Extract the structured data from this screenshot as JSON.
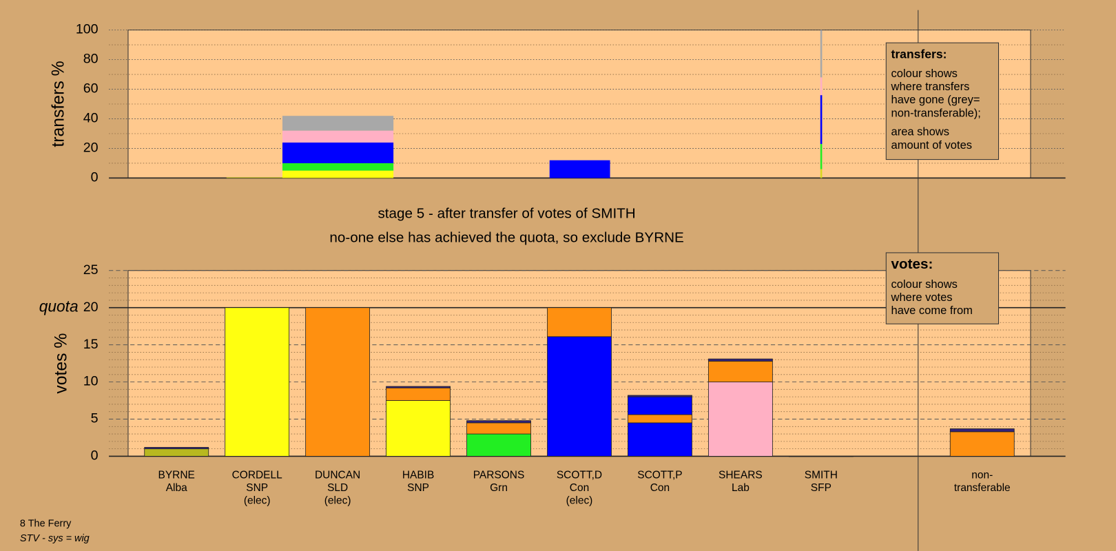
{
  "chart_data": [
    {
      "type": "transfer-area",
      "ylabel": "transfers %",
      "ylim": [
        0,
        100
      ],
      "yticks": [
        0,
        20,
        40,
        60,
        80,
        100
      ],
      "minor_grid_step": 10,
      "grid_style": "dotted",
      "xlim": [
        0,
        100
      ],
      "blocks": [
        {
          "x": [
            10.9,
            17.1
          ],
          "segments": [
            {
              "color": "#b8b820",
              "value": 0.5
            }
          ]
        },
        {
          "x": [
            17.1,
            29.4
          ],
          "segments": [
            {
              "color": "#ffff10",
              "value": 5
            },
            {
              "color": "#22ee22",
              "value": 5
            },
            {
              "color": "#0000ff",
              "value": 14
            },
            {
              "color": "#ffb0c4",
              "value": 8
            },
            {
              "color": "#a8a8a8",
              "value": 10
            }
          ]
        },
        {
          "x": [
            46.7,
            53.4
          ],
          "segments": [
            {
              "color": "#0000ff",
              "value": 12
            }
          ]
        },
        {
          "x": [
            76.7,
            76.9
          ],
          "segments": [
            {
              "color": "#d8d820",
              "value": 6
            },
            {
              "color": "#22ee22",
              "value": 17
            },
            {
              "color": "#0000ff",
              "value": 33
            },
            {
              "color": "#ffb0c4",
              "value": 12
            },
            {
              "color": "#a8a8a8",
              "value": 32
            }
          ]
        }
      ],
      "legend": {
        "title": "transfers:",
        "paragraphs": [
          [
            "colour shows",
            "where transfers",
            "have gone (grey=",
            "non-transferable);"
          ],
          [
            "area shows",
            "amount of votes"
          ]
        ]
      }
    },
    {
      "type": "stacked-bar",
      "ylabel": "votes %",
      "ylim": [
        0,
        25
      ],
      "yticks": [
        0,
        5,
        10,
        15,
        20,
        25
      ],
      "minor_grid_step": 1,
      "grid_style": "dashed",
      "quota": {
        "value": 20,
        "label": "quota"
      },
      "bars": [
        {
          "label": [
            "BYRNE",
            "Alba"
          ],
          "segments": [
            {
              "color": "#b8b820",
              "value": 1.0
            },
            {
              "color": "#33237a",
              "value": 0.2
            }
          ]
        },
        {
          "label": [
            "CORDELL",
            "SNP",
            "(elec)"
          ],
          "segments": [
            {
              "color": "#ffff10",
              "value": 20
            }
          ]
        },
        {
          "label": [
            "DUNCAN",
            "SLD",
            "(elec)"
          ],
          "segments": [
            {
              "color": "#ff9010",
              "value": 20
            }
          ]
        },
        {
          "label": [
            "HABIB",
            "SNP"
          ],
          "segments": [
            {
              "color": "#ffff10",
              "value": 7.5
            },
            {
              "color": "#ff9010",
              "value": 1.7
            },
            {
              "color": "#33237a",
              "value": 0.2
            }
          ]
        },
        {
          "label": [
            "PARSONS",
            "Grn"
          ],
          "segments": [
            {
              "color": "#22ee22",
              "value": 3.0
            },
            {
              "color": "#ff9010",
              "value": 1.5
            },
            {
              "color": "#33237a",
              "value": 0.3
            }
          ]
        },
        {
          "label": [
            "SCOTT,D",
            "Con",
            "(elec)"
          ],
          "segments": [
            {
              "color": "#0000ff",
              "value": 16.1
            },
            {
              "color": "#ff9010",
              "value": 3.9
            }
          ]
        },
        {
          "label": [
            "SCOTT,P",
            "Con"
          ],
          "segments": [
            {
              "color": "#0000ff",
              "value": 4.5
            },
            {
              "color": "#ff9010",
              "value": 1.1
            },
            {
              "color": "#0000ff",
              "value": 2.4
            },
            {
              "color": "#33237a",
              "value": 0.2
            }
          ]
        },
        {
          "label": [
            "SHEARS",
            "Lab"
          ],
          "segments": [
            {
              "color": "#ffb0c4",
              "value": 10
            },
            {
              "color": "#ff9010",
              "value": 2.8
            },
            {
              "color": "#33237a",
              "value": 0.3
            }
          ]
        },
        {
          "label": [
            "SMITH",
            "SFP"
          ],
          "segments": [
            {
              "color": "#33237a",
              "value": 0
            }
          ]
        },
        {
          "label": null,
          "segments": []
        },
        {
          "label": [
            "non-",
            "transferable"
          ],
          "segments": [
            {
              "color": "#ff9010",
              "value": 3.3
            },
            {
              "color": "#33237a",
              "value": 0.4
            }
          ]
        }
      ],
      "legend": {
        "title": "votes:",
        "paragraphs": [
          [
            "colour shows",
            "where votes",
            "have come from"
          ]
        ]
      }
    }
  ],
  "stage_title": "stage 5 - after transfer of votes of SMITH",
  "stage_note": "no-one else has achieved the quota, so exclude BYRNE",
  "footer": {
    "ward": "8 The Ferry",
    "system": "STV - sys = wig"
  }
}
